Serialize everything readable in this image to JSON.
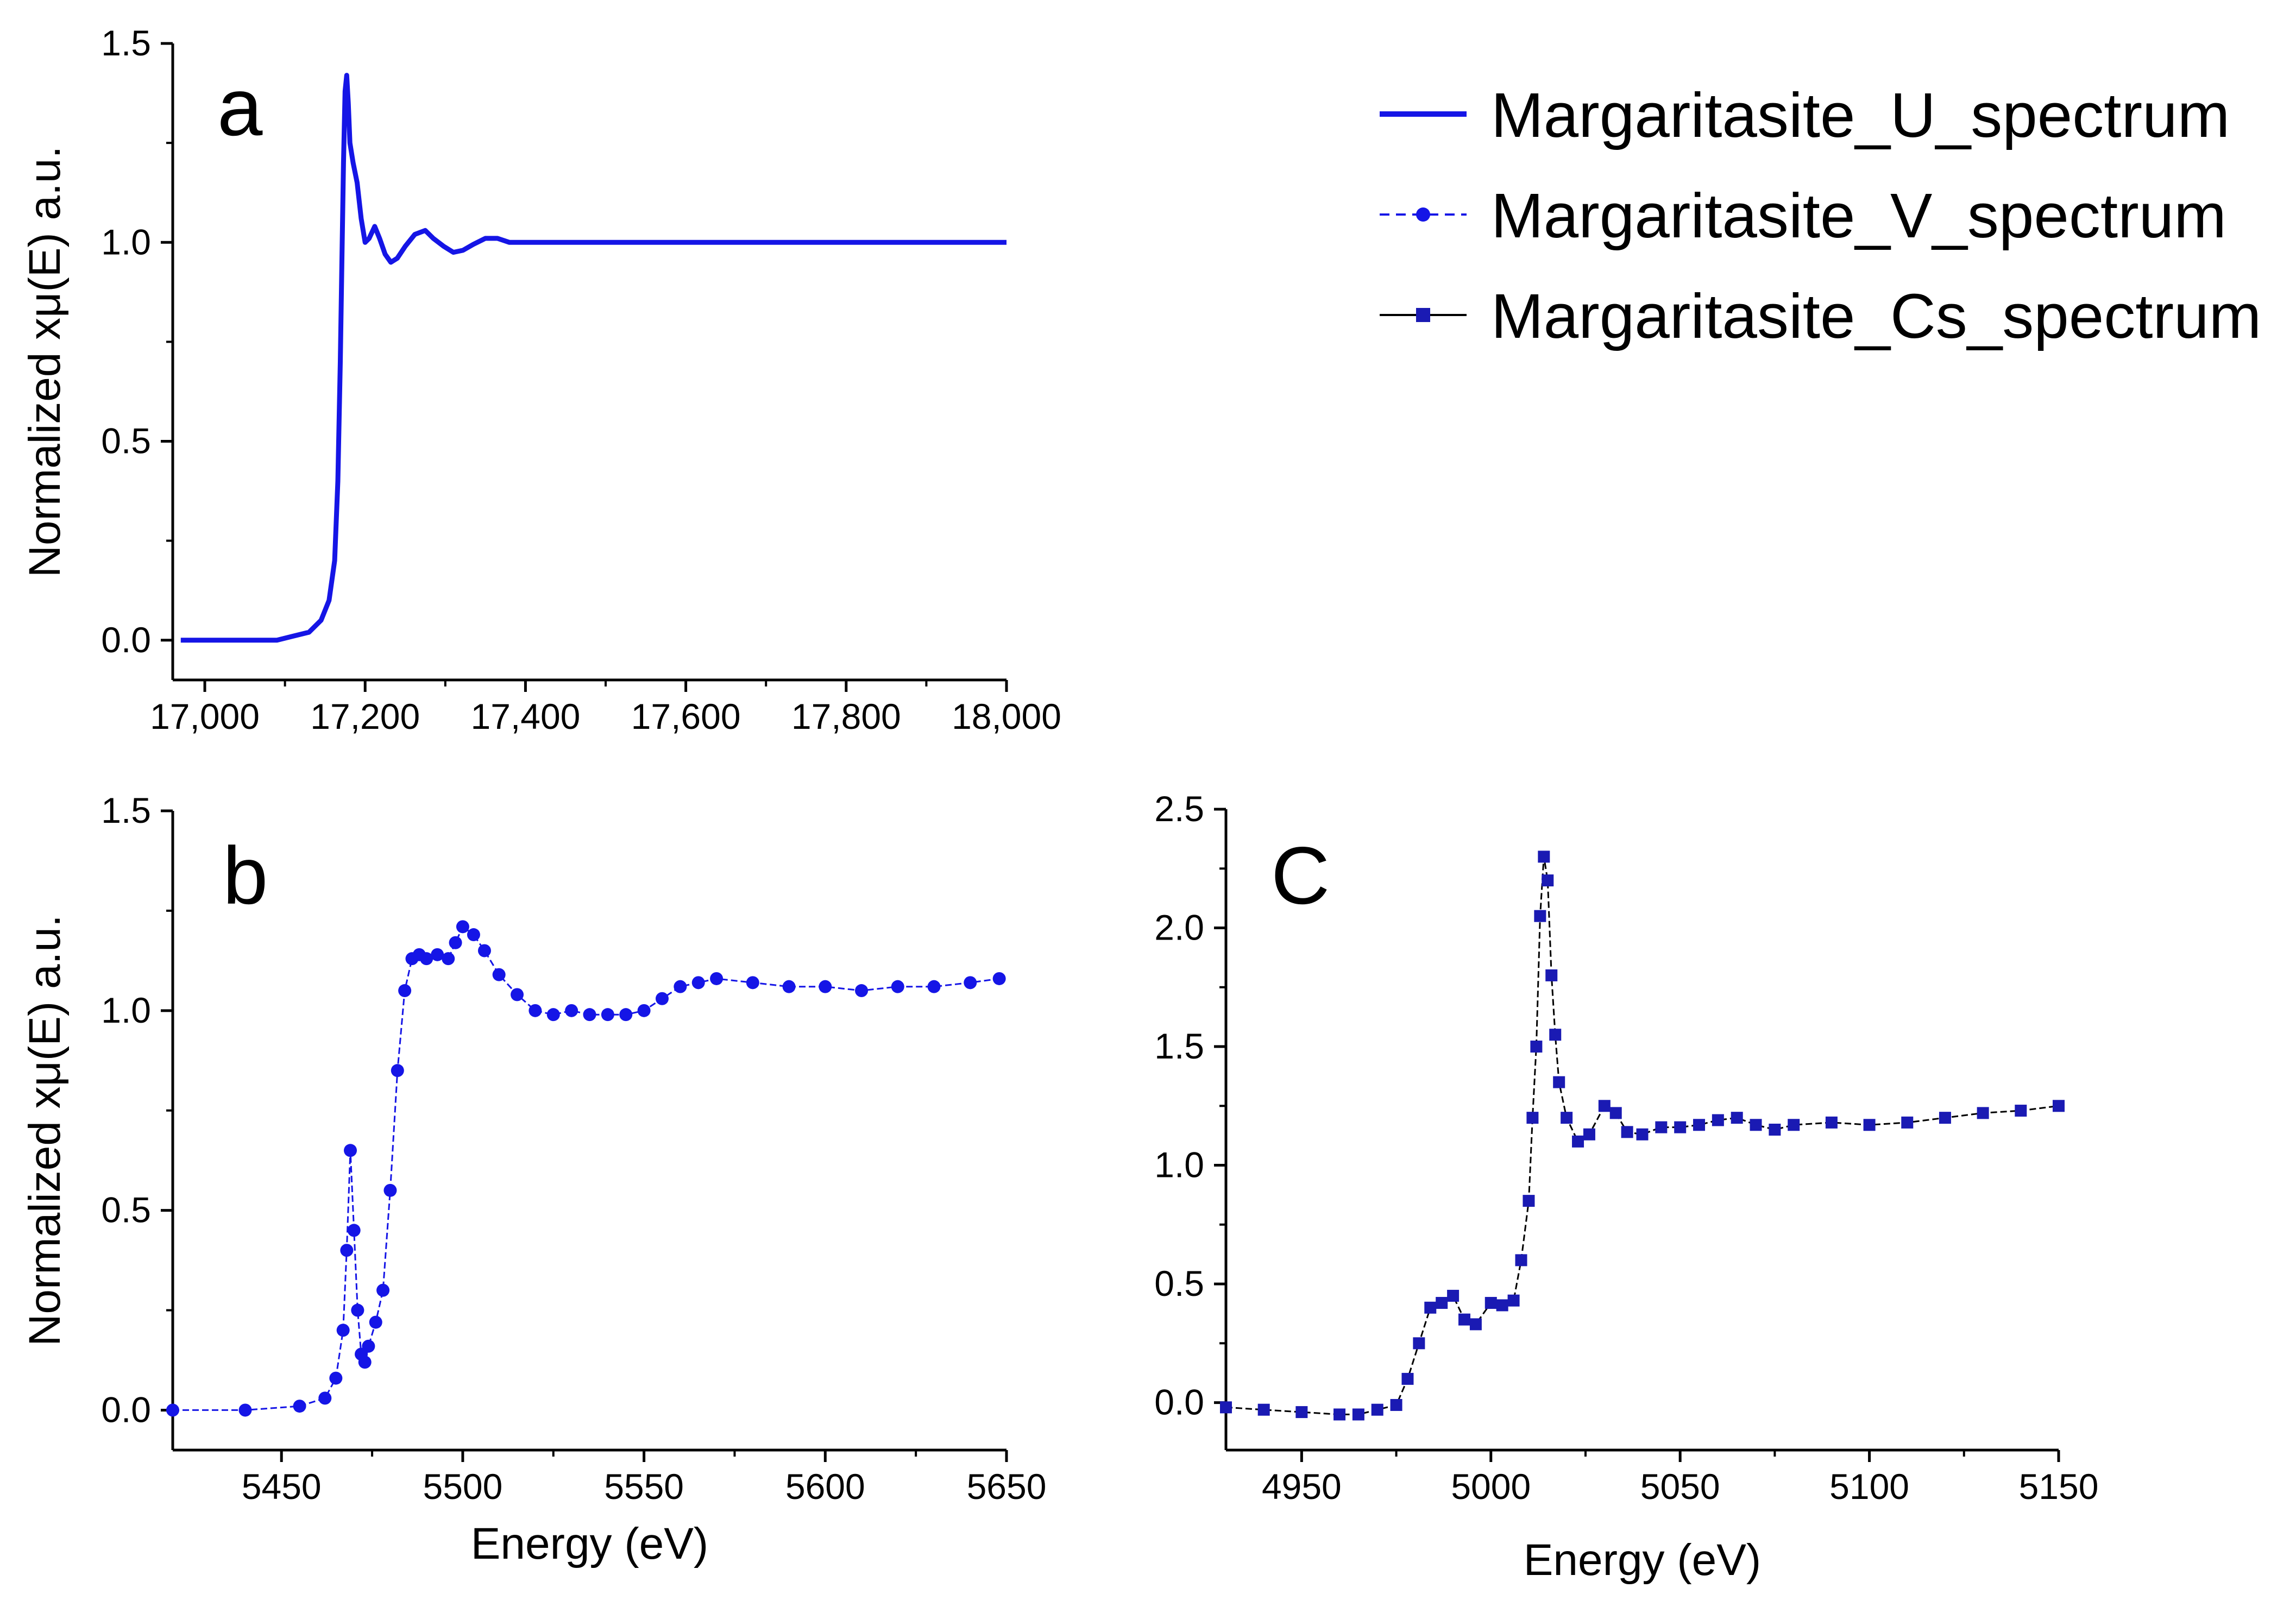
{
  "chart_data": [
    {
      "id": "a",
      "type": "line",
      "panel_label": "a",
      "series_name": "Margaritasite_U_spectrum",
      "color": "#1515e6",
      "ylabel": "Normalized xμ(E) a.u.",
      "xlabel": "",
      "xlim": [
        16960,
        18000
      ],
      "ylim": [
        -0.1,
        1.5
      ],
      "xticks": [
        17000,
        17200,
        17400,
        17600,
        17800,
        18000
      ],
      "xtick_labels": [
        "17,000",
        "17,200",
        "17,400",
        "17,600",
        "17,800",
        "18,000"
      ],
      "yticks": [
        0.0,
        0.5,
        1.0,
        1.5
      ],
      "ytick_labels": [
        "0.0",
        "0.5",
        "1.0",
        "1.5"
      ],
      "x": [
        16970,
        17000,
        17030,
        17060,
        17090,
        17110,
        17130,
        17145,
        17155,
        17162,
        17166,
        17169,
        17171,
        17173,
        17175,
        17177,
        17179,
        17181,
        17185,
        17190,
        17195,
        17200,
        17205,
        17212,
        17218,
        17225,
        17232,
        17240,
        17250,
        17262,
        17275,
        17285,
        17298,
        17310,
        17322,
        17335,
        17350,
        17365,
        17380,
        17400,
        17450,
        17500,
        17550,
        17600,
        17700,
        17800,
        17900,
        18000
      ],
      "y": [
        0.0,
        0.0,
        0.0,
        0.0,
        0.0,
        0.01,
        0.02,
        0.05,
        0.1,
        0.2,
        0.4,
        0.7,
        0.95,
        1.2,
        1.38,
        1.42,
        1.35,
        1.25,
        1.2,
        1.15,
        1.06,
        1.0,
        1.01,
        1.04,
        1.01,
        0.97,
        0.95,
        0.96,
        0.99,
        1.02,
        1.03,
        1.01,
        0.99,
        0.975,
        0.98,
        0.995,
        1.01,
        1.01,
        1.0,
        1.0,
        1.0,
        1.0,
        1.0,
        1.0,
        1.0,
        1.0,
        1.0,
        1.0
      ]
    },
    {
      "id": "b",
      "type": "scatter",
      "panel_label": "b",
      "series_name": "Margaritasite_V_spectrum",
      "color": "#1515e6",
      "ylabel": "Normalized xμ(E) a.u.",
      "xlabel": "Energy (eV)",
      "xlim": [
        5420,
        5650
      ],
      "ylim": [
        -0.1,
        1.5
      ],
      "xticks": [
        5450,
        5500,
        5550,
        5600,
        5650
      ],
      "xtick_labels": [
        "5450",
        "5500",
        "5550",
        "5600",
        "5650"
      ],
      "yticks": [
        0.0,
        0.5,
        1.0,
        1.5
      ],
      "ytick_labels": [
        "0.0",
        "0.5",
        "1.0",
        "1.5"
      ],
      "x": [
        5420,
        5440,
        5455,
        5462,
        5465,
        5467,
        5468,
        5469,
        5470,
        5471,
        5472,
        5473,
        5474,
        5476,
        5478,
        5480,
        5482,
        5484,
        5486,
        5488,
        5490,
        5493,
        5496,
        5498,
        5500,
        5503,
        5506,
        5510,
        5515,
        5520,
        5525,
        5530,
        5535,
        5540,
        5545,
        5550,
        5555,
        5560,
        5565,
        5570,
        5580,
        5590,
        5600,
        5610,
        5620,
        5630,
        5640,
        5648
      ],
      "y": [
        0.0,
        0.0,
        0.01,
        0.03,
        0.08,
        0.2,
        0.4,
        0.65,
        0.45,
        0.25,
        0.14,
        0.12,
        0.16,
        0.22,
        0.3,
        0.55,
        0.85,
        1.05,
        1.13,
        1.14,
        1.13,
        1.14,
        1.13,
        1.17,
        1.21,
        1.19,
        1.15,
        1.09,
        1.04,
        1.0,
        0.99,
        1.0,
        0.99,
        0.99,
        0.99,
        1.0,
        1.03,
        1.06,
        1.07,
        1.08,
        1.07,
        1.06,
        1.06,
        1.05,
        1.06,
        1.06,
        1.07,
        1.08
      ]
    },
    {
      "id": "c",
      "type": "scatter",
      "panel_label": "C",
      "series_name": "Margaritasite_Cs_spectrum",
      "color": "#1a1ab3",
      "ylabel": "",
      "xlabel": "Energy (eV)",
      "xlim": [
        4930,
        5150
      ],
      "ylim": [
        -0.2,
        2.5
      ],
      "xticks": [
        4950,
        5000,
        5050,
        5100,
        5150
      ],
      "xtick_labels": [
        "4950",
        "5000",
        "5050",
        "5100",
        "5150"
      ],
      "yticks": [
        0.0,
        0.5,
        1.0,
        1.5,
        2.0,
        2.5
      ],
      "ytick_labels": [
        "0.0",
        "0.5",
        "1.0",
        "1.5",
        "2.0",
        "2.5"
      ],
      "x": [
        4930,
        4940,
        4950,
        4960,
        4965,
        4970,
        4975,
        4978,
        4981,
        4984,
        4987,
        4990,
        4993,
        4996,
        5000,
        5003,
        5006,
        5008,
        5010,
        5011,
        5012,
        5013,
        5014,
        5015,
        5016,
        5017,
        5018,
        5020,
        5023,
        5026,
        5030,
        5033,
        5036,
        5040,
        5045,
        5050,
        5055,
        5060,
        5065,
        5070,
        5075,
        5080,
        5090,
        5100,
        5110,
        5120,
        5130,
        5140,
        5150
      ],
      "y": [
        -0.02,
        -0.03,
        -0.04,
        -0.05,
        -0.05,
        -0.03,
        -0.01,
        0.1,
        0.25,
        0.4,
        0.42,
        0.45,
        0.35,
        0.33,
        0.42,
        0.41,
        0.43,
        0.6,
        0.85,
        1.2,
        1.5,
        2.05,
        2.3,
        2.2,
        1.8,
        1.55,
        1.35,
        1.2,
        1.1,
        1.13,
        1.25,
        1.22,
        1.14,
        1.13,
        1.16,
        1.16,
        1.17,
        1.19,
        1.2,
        1.17,
        1.15,
        1.17,
        1.18,
        1.17,
        1.18,
        1.2,
        1.22,
        1.23,
        1.25
      ]
    }
  ],
  "legend": [
    {
      "label": "Margaritasite_U_spectrum",
      "color": "#1515e6",
      "style": "solid"
    },
    {
      "label": "Margaritasite_V_spectrum",
      "color": "#1515e6",
      "style": "dashed-circle"
    },
    {
      "label": "Margaritasite_Cs_spectrum",
      "color": "#1a1ab3",
      "style": "black-square"
    }
  ]
}
